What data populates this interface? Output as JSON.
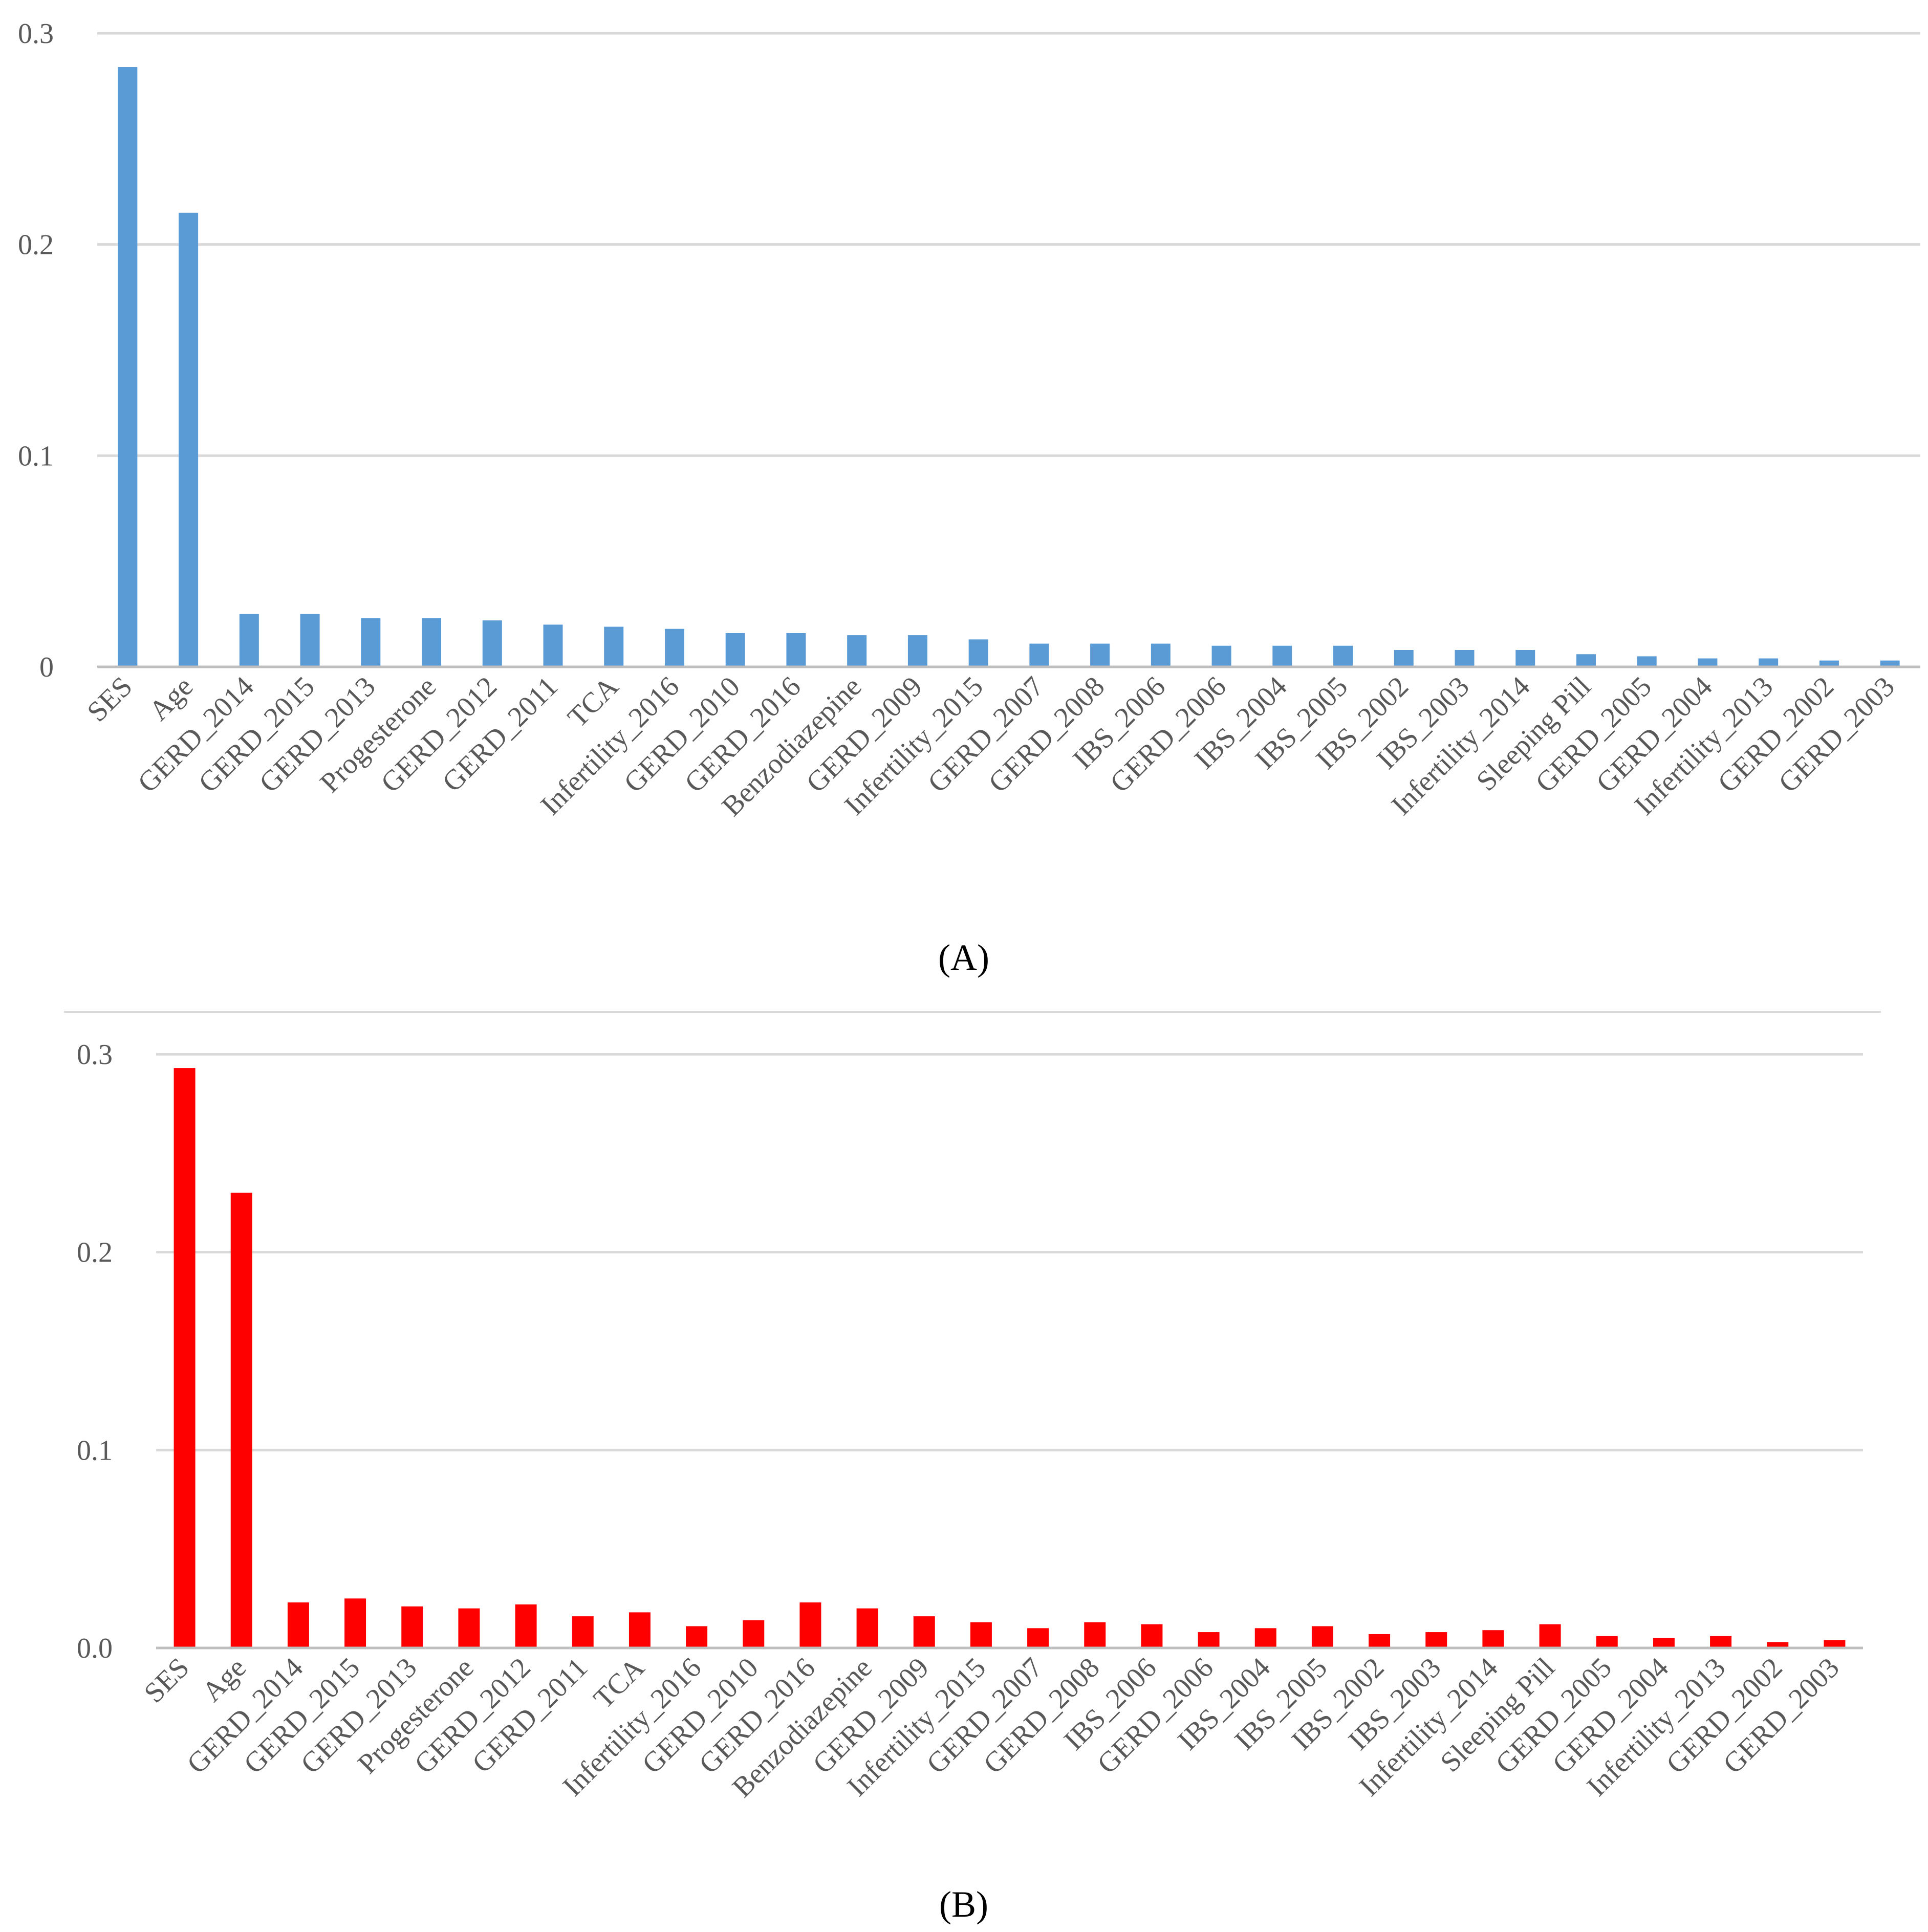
{
  "chart_data": [
    {
      "type": "bar",
      "panel": "A",
      "color": "#5b9bd5",
      "ylim": [
        0,
        0.3
      ],
      "yticks": [
        "0",
        "0.1",
        "0.2",
        "0.3"
      ],
      "grid": true,
      "categories": [
        "SES",
        "Age",
        "GERD_2014",
        "GERD_2015",
        "GERD_2013",
        "Progesterone",
        "GERD_2012",
        "GERD_2011",
        "TCA",
        "Infertility_2016",
        "GERD_2010",
        "GERD_2016",
        "Benzodiazepine",
        "GERD_2009",
        "Infertility_2015",
        "GERD_2007",
        "GERD_2008",
        "IBS_2006",
        "GERD_2006",
        "IBS_2004",
        "IBS_2005",
        "IBS_2002",
        "IBS_2003",
        "Infertility_2014",
        "Sleeping Pill",
        "GERD_2005",
        "GERD_2004",
        "Infertility_2013",
        "GERD_2002",
        "GERD_2003"
      ],
      "values": [
        0.284,
        0.215,
        0.025,
        0.025,
        0.023,
        0.023,
        0.022,
        0.02,
        0.019,
        0.018,
        0.016,
        0.016,
        0.015,
        0.015,
        0.013,
        0.011,
        0.011,
        0.011,
        0.01,
        0.01,
        0.01,
        0.008,
        0.008,
        0.008,
        0.006,
        0.005,
        0.004,
        0.004,
        0.003,
        0.003
      ]
    },
    {
      "type": "bar",
      "panel": "B",
      "color": "#ff0000",
      "ylim": [
        0,
        0.3
      ],
      "yticks": [
        "0.0",
        "0.1",
        "0.2",
        "0.3"
      ],
      "grid": true,
      "categories": [
        "SES",
        "Age",
        "GERD_2014",
        "GERD_2015",
        "GERD_2013",
        "Progesterone",
        "GERD_2012",
        "GERD_2011",
        "TCA",
        "Infertility_2016",
        "GERD_2010",
        "GERD_2016",
        "Benzodiazepine",
        "GERD_2009",
        "Infertility_2015",
        "GERD_2007",
        "GERD_2008",
        "IBS_2006",
        "GERD_2006",
        "IBS_2004",
        "IBS_2005",
        "IBS_2002",
        "IBS_2003",
        "Infertility_2014",
        "Sleeping Pill",
        "GERD_2005",
        "GERD_2004",
        "Infertility_2013",
        "GERD_2002",
        "GERD_2003"
      ],
      "values": [
        0.293,
        0.23,
        0.023,
        0.025,
        0.021,
        0.02,
        0.022,
        0.016,
        0.018,
        0.011,
        0.014,
        0.023,
        0.02,
        0.016,
        0.013,
        0.01,
        0.013,
        0.012,
        0.008,
        0.01,
        0.011,
        0.007,
        0.008,
        0.009,
        0.012,
        0.006,
        0.005,
        0.006,
        0.003,
        0.004
      ]
    }
  ],
  "captions": {
    "a": "(A)",
    "b": "(B)"
  }
}
